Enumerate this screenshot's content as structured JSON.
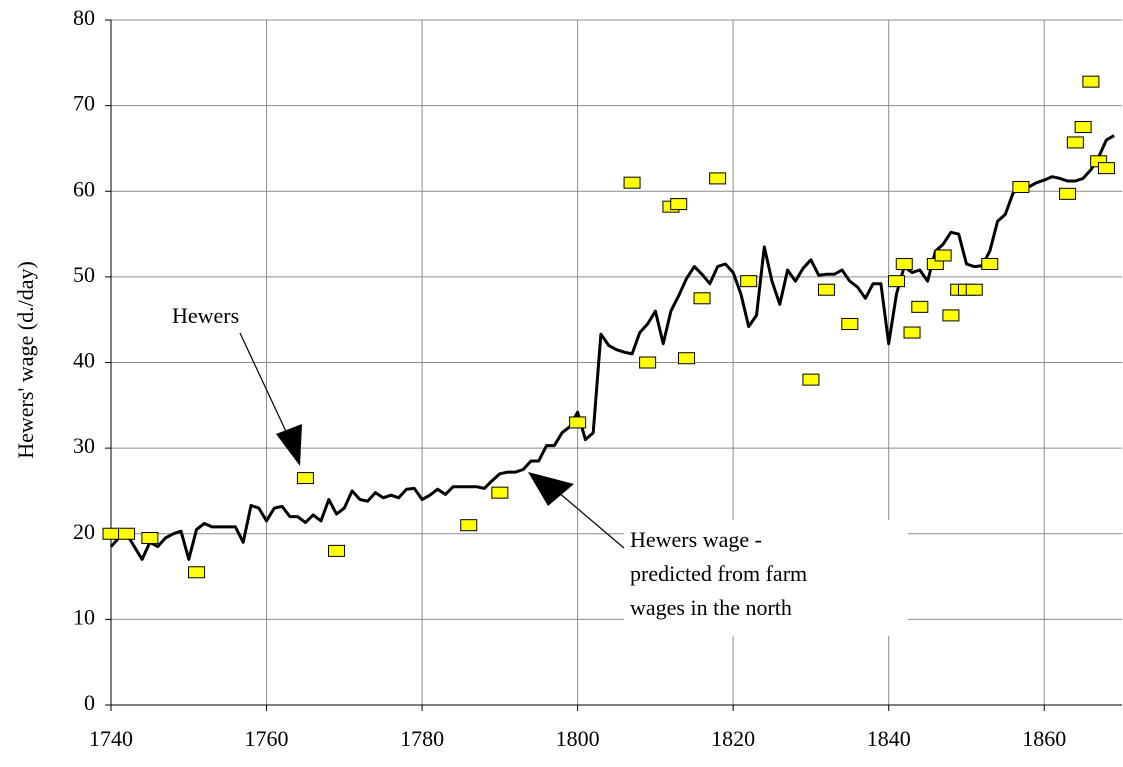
{
  "chart_data": {
    "type": "line",
    "y_label": "Hewers' wage (d./day)",
    "annotations": [
      "Hewers",
      [
        "Hewers wage -",
        "predicted from farm",
        "wages in the north"
      ]
    ],
    "xlim": [
      1740,
      1870
    ],
    "xticks": [
      1740,
      1760,
      1780,
      1800,
      1820,
      1840,
      1860
    ],
    "ylim": [
      0,
      80
    ],
    "yticks": [
      0,
      10,
      20,
      30,
      40,
      50,
      60,
      70,
      80
    ],
    "grid": true,
    "series": [
      {
        "type": "line",
        "color": "#000000",
        "x": [
          1740,
          1741,
          1742,
          1743,
          1744,
          1745,
          1746,
          1747,
          1748,
          1749,
          1750,
          1751,
          1752,
          1753,
          1754,
          1755,
          1756,
          1757,
          1758,
          1759,
          1760,
          1761,
          1762,
          1763,
          1764,
          1765,
          1766,
          1767,
          1768,
          1769,
          1770,
          1771,
          1772,
          1773,
          1774,
          1775,
          1776,
          1777,
          1778,
          1779,
          1780,
          1781,
          1782,
          1783,
          1784,
          1785,
          1786,
          1787,
          1788,
          1789,
          1790,
          1791,
          1792,
          1793,
          1794,
          1795,
          1796,
          1797,
          1798,
          1799,
          1800,
          1801,
          1802,
          1803,
          1804,
          1805,
          1806,
          1807,
          1808,
          1809,
          1810,
          1811,
          1812,
          1813,
          1814,
          1815,
          1816,
          1817,
          1818,
          1819,
          1820,
          1821,
          1822,
          1823,
          1824,
          1825,
          1826,
          1827,
          1828,
          1829,
          1830,
          1831,
          1832,
          1833,
          1834,
          1835,
          1836,
          1837,
          1838,
          1839,
          1840,
          1841,
          1842,
          1843,
          1844,
          1845,
          1846,
          1847,
          1848,
          1849,
          1850,
          1851,
          1852,
          1853,
          1854,
          1855,
          1856,
          1857,
          1858,
          1859,
          1860,
          1861,
          1862,
          1863,
          1864,
          1865,
          1866,
          1867,
          1868,
          1869
        ],
        "values": [
          18.5,
          19.5,
          20,
          18.5,
          17,
          19,
          18.5,
          19.5,
          20,
          20.3,
          17,
          20.5,
          21.2,
          20.8,
          20.8,
          20.8,
          20.8,
          19,
          23.3,
          23,
          21.5,
          23,
          23.2,
          22,
          22,
          21.3,
          22.2,
          21.5,
          24,
          22.3,
          23,
          25,
          24,
          23.8,
          24.8,
          24.2,
          24.5,
          24.2,
          25.2,
          25.3,
          24,
          24.5,
          25.2,
          24.6,
          25.5,
          25.5,
          25.5,
          25.5,
          25.3,
          26.2,
          27,
          27.2,
          27.2,
          27.5,
          28.5,
          28.5,
          30.3,
          30.3,
          31.8,
          32.5,
          34.2,
          31,
          31.8,
          43.3,
          42,
          41.5,
          41.2,
          41,
          43.5,
          44.5,
          46,
          42.2,
          46,
          47.8,
          49.8,
          51.2,
          50.3,
          49.2,
          51.2,
          51.5,
          50.5,
          48,
          44.2,
          45.5,
          53.5,
          49.5,
          46.8,
          50.8,
          49.5,
          51,
          52,
          50.2,
          50.3,
          50.3,
          50.8,
          49.5,
          48.8,
          47.5,
          49.2,
          49.2,
          42.2,
          48,
          51.2,
          50.5,
          50.8,
          49.5,
          53,
          53.8,
          55.2,
          55,
          51.5,
          51.2,
          51.3,
          53,
          56.5,
          57.3,
          59.8,
          60.5,
          60.5,
          61,
          61.3,
          61.7,
          61.5,
          61.2,
          61.2,
          61.5,
          62.5,
          64,
          66,
          66.5
        ]
      },
      {
        "type": "scatter",
        "color": "#ffff00",
        "x": [
          1740,
          1742,
          1745,
          1751,
          1765,
          1769,
          1786,
          1790,
          1800,
          1807,
          1809,
          1812,
          1813,
          1814,
          1816,
          1818,
          1822,
          1830,
          1832,
          1835,
          1841,
          1842,
          1843,
          1844,
          1846,
          1847,
          1848,
          1849,
          1850,
          1851,
          1853,
          1857,
          1863,
          1864,
          1865,
          1866,
          1867,
          1868
        ],
        "values": [
          20,
          20,
          19.5,
          15.5,
          26.5,
          18,
          21,
          24.8,
          33,
          61,
          40,
          58.2,
          58.5,
          40.5,
          47.5,
          61.5,
          49.5,
          38,
          48.5,
          44.5,
          49.5,
          51.5,
          43.5,
          46.5,
          51.5,
          52.5,
          45.5,
          48.5,
          48.5,
          48.5,
          51.5,
          60.5,
          59.7,
          65.7,
          67.5,
          72.8,
          63.5,
          62.7
        ]
      }
    ]
  }
}
